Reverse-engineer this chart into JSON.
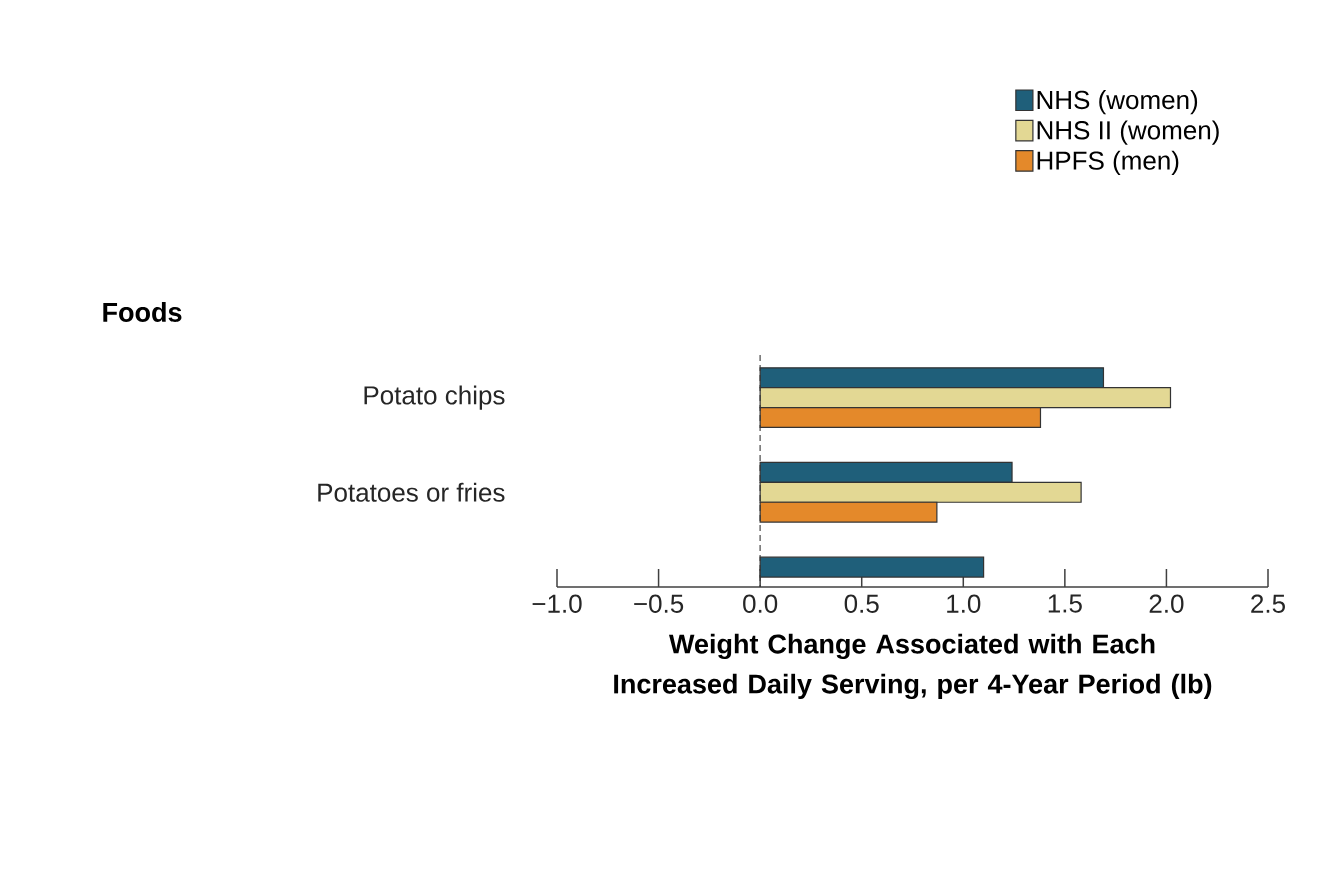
{
  "chart_data": {
    "type": "bar",
    "orientation": "horizontal",
    "annotations": [
      "Foods"
    ],
    "xlabel": "Weight Change Associated with Each Increased Daily Serving, per 4-Year Period (lb)",
    "categories": [
      "Potato chips",
      "Potatoes or fries",
      null
    ],
    "series": [
      {
        "name": "NHS (women)",
        "color": "#1f5f7a",
        "values": [
          1.69,
          1.24,
          1.1
        ]
      },
      {
        "name": "NHS II (women)",
        "color": "#e3d894",
        "values": [
          2.02,
          1.58,
          null
        ]
      },
      {
        "name": "HPFS (men)",
        "color": "#e4892a",
        "values": [
          1.38,
          0.87,
          null
        ]
      }
    ],
    "xlim": [
      -1.0,
      2.5
    ],
    "xticks": [
      {
        "value": -1.0,
        "label": "−1.0"
      },
      {
        "value": -0.5,
        "label": "−0.5"
      },
      {
        "value": 0,
        "label": "0.0"
      },
      0.5,
      {
        "value": 1.0,
        "label": "1.0"
      },
      1.5,
      {
        "value": 2.0,
        "label": "2.0"
      },
      2.5
    ],
    "ref_lines": [
      {
        "axis": "x",
        "value": 0,
        "line_style": "dashed"
      }
    ],
    "legend": "top right"
  }
}
